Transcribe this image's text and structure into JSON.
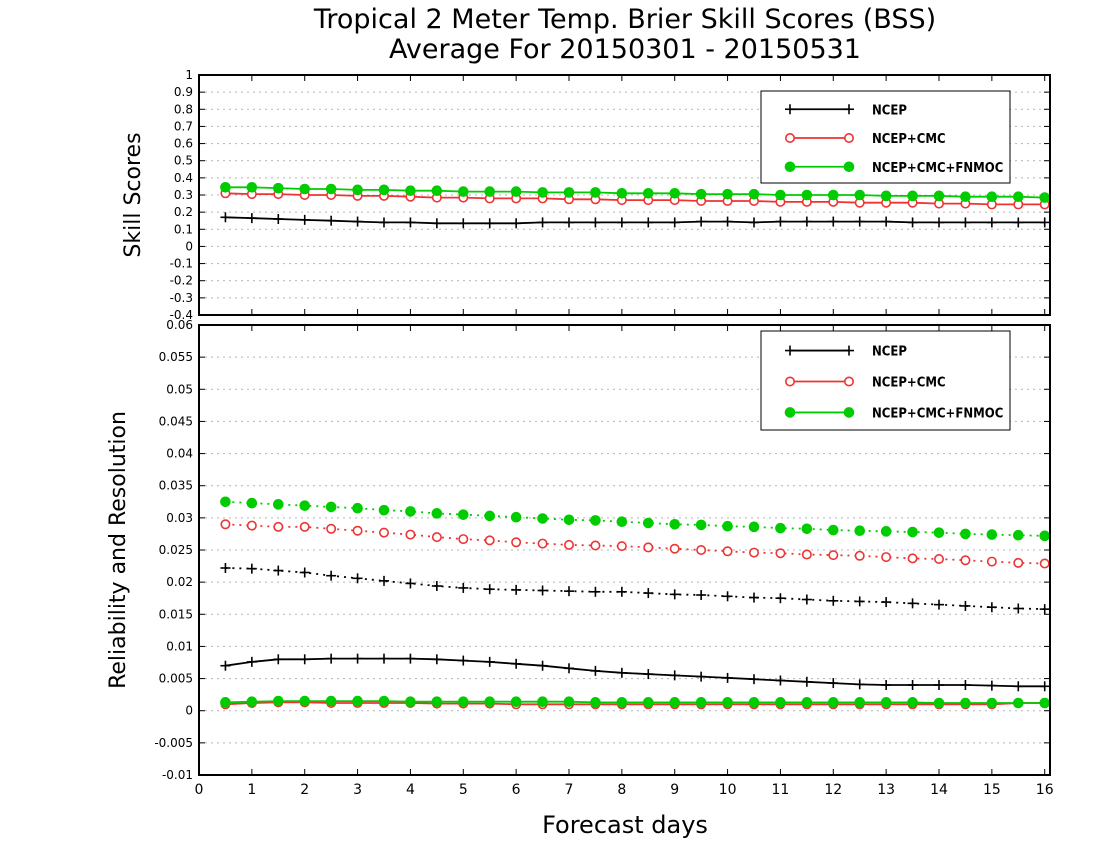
{
  "figure": {
    "title_line1": "Tropical 2 Meter Temp. Brier Skill Scores (BSS)",
    "title_line2": "Average For 20150301 - 20150531",
    "xlabel": "Forecast days"
  },
  "colors": {
    "ncep": "#000000",
    "ncep_cmc": "#ee3333",
    "ncep_cmc_fnmoc": "#00cc00",
    "grid": "#b4b4b4"
  },
  "chart_data": [
    {
      "type": "line",
      "ylabel": "Skill Scores",
      "xlim": [
        0,
        16.1
      ],
      "ylim": [
        -0.4,
        1.0
      ],
      "xticks": [
        0,
        1,
        2,
        3,
        4,
        5,
        6,
        7,
        8,
        9,
        10,
        11,
        12,
        13,
        14,
        15,
        16
      ],
      "yticks": [
        -0.4,
        -0.3,
        -0.2,
        -0.1,
        0,
        0.1,
        0.2,
        0.3,
        0.4,
        0.5,
        0.6,
        0.7,
        0.8,
        0.9,
        1
      ],
      "ytick_labels": [
        "-0.4",
        "-0.3",
        "-0.2",
        "-0.1",
        "0",
        "0.1",
        "0.2",
        "0.3",
        "0.4",
        "0.5",
        "0.6",
        "0.7",
        "0.8",
        "0.9",
        "1"
      ],
      "grid": true,
      "legend": "top-right",
      "x": [
        0.5,
        1,
        1.5,
        2,
        2.5,
        3,
        3.5,
        4,
        4.5,
        5,
        5.5,
        6,
        6.5,
        7,
        7.5,
        8,
        8.5,
        9,
        9.5,
        10,
        10.5,
        11,
        11.5,
        12,
        12.5,
        13,
        13.5,
        14,
        14.5,
        15,
        15.5,
        16
      ],
      "series": [
        {
          "name": "NCEP",
          "color_key": "ncep",
          "marker": "plus",
          "style": "solid",
          "values": [
            0.17,
            0.165,
            0.16,
            0.155,
            0.15,
            0.145,
            0.14,
            0.14,
            0.135,
            0.135,
            0.135,
            0.135,
            0.14,
            0.14,
            0.14,
            0.14,
            0.14,
            0.14,
            0.145,
            0.145,
            0.14,
            0.145,
            0.145,
            0.145,
            0.145,
            0.145,
            0.14,
            0.14,
            0.14,
            0.14,
            0.14,
            0.14
          ]
        },
        {
          "name": "NCEP+CMC",
          "color_key": "ncep_cmc",
          "marker": "open-circle",
          "style": "solid",
          "values": [
            0.31,
            0.305,
            0.305,
            0.3,
            0.3,
            0.295,
            0.295,
            0.29,
            0.285,
            0.285,
            0.28,
            0.28,
            0.28,
            0.275,
            0.275,
            0.27,
            0.27,
            0.27,
            0.265,
            0.265,
            0.265,
            0.26,
            0.26,
            0.26,
            0.255,
            0.255,
            0.255,
            0.25,
            0.25,
            0.245,
            0.245,
            0.245
          ]
        },
        {
          "name": "NCEP+CMC+FNMOC",
          "color_key": "ncep_cmc_fnmoc",
          "marker": "filled-circle",
          "style": "solid",
          "values": [
            0.345,
            0.345,
            0.34,
            0.335,
            0.335,
            0.33,
            0.33,
            0.325,
            0.325,
            0.32,
            0.32,
            0.32,
            0.315,
            0.315,
            0.315,
            0.31,
            0.31,
            0.31,
            0.305,
            0.305,
            0.305,
            0.3,
            0.3,
            0.3,
            0.3,
            0.295,
            0.295,
            0.295,
            0.29,
            0.29,
            0.29,
            0.285
          ]
        }
      ]
    },
    {
      "type": "line",
      "ylabel": "Reliability and Resolution",
      "xlim": [
        0,
        16.1
      ],
      "ylim": [
        -0.01,
        0.06
      ],
      "xticks": [
        0,
        1,
        2,
        3,
        4,
        5,
        6,
        7,
        8,
        9,
        10,
        11,
        12,
        13,
        14,
        15,
        16
      ],
      "yticks": [
        -0.01,
        -0.005,
        0,
        0.005,
        0.01,
        0.015,
        0.02,
        0.025,
        0.03,
        0.035,
        0.04,
        0.045,
        0.05,
        0.055,
        0.06
      ],
      "ytick_labels": [
        "-0.01",
        "-0.005",
        "0",
        "0.005",
        "0.01",
        "0.015",
        "0.02",
        "0.025",
        "0.03",
        "0.035",
        "0.04",
        "0.045",
        "0.05",
        "0.055",
        "0.06"
      ],
      "grid": true,
      "legend": "top-right",
      "x": [
        0.5,
        1,
        1.5,
        2,
        2.5,
        3,
        3.5,
        4,
        4.5,
        5,
        5.5,
        6,
        6.5,
        7,
        7.5,
        8,
        8.5,
        9,
        9.5,
        10,
        10.5,
        11,
        11.5,
        12,
        12.5,
        13,
        13.5,
        14,
        14.5,
        15,
        15.5,
        16
      ],
      "series": [
        {
          "name": "NCEP",
          "color_key": "ncep",
          "marker": "plus",
          "style": "dotted",
          "values": [
            0.0222,
            0.0221,
            0.0218,
            0.0215,
            0.021,
            0.0206,
            0.0202,
            0.0198,
            0.0194,
            0.0191,
            0.0189,
            0.0188,
            0.0187,
            0.0186,
            0.0185,
            0.0185,
            0.0183,
            0.0181,
            0.018,
            0.0178,
            0.0176,
            0.0175,
            0.0173,
            0.0171,
            0.017,
            0.0169,
            0.0167,
            0.0165,
            0.0163,
            0.0161,
            0.0159,
            0.0158
          ]
        },
        {
          "name": "NCEP+CMC",
          "color_key": "ncep_cmc",
          "marker": "open-circle",
          "style": "dotted",
          "values": [
            0.029,
            0.0288,
            0.0286,
            0.0286,
            0.0283,
            0.028,
            0.0277,
            0.0274,
            0.027,
            0.0267,
            0.0265,
            0.0262,
            0.026,
            0.0258,
            0.0257,
            0.0256,
            0.0254,
            0.0252,
            0.025,
            0.0248,
            0.0246,
            0.0245,
            0.0243,
            0.0242,
            0.0241,
            0.0239,
            0.0237,
            0.0236,
            0.0234,
            0.0232,
            0.023,
            0.0229
          ]
        },
        {
          "name": "NCEP+CMC+FNMOC",
          "color_key": "ncep_cmc_fnmoc",
          "marker": "filled-circle",
          "style": "dotted",
          "values": [
            0.0325,
            0.0323,
            0.0321,
            0.0319,
            0.0317,
            0.0315,
            0.0312,
            0.031,
            0.0307,
            0.0305,
            0.0303,
            0.0301,
            0.0299,
            0.0297,
            0.0296,
            0.0294,
            0.0292,
            0.029,
            0.0289,
            0.0287,
            0.0286,
            0.0284,
            0.0283,
            0.0281,
            0.028,
            0.0279,
            0.0278,
            0.0277,
            0.0275,
            0.0274,
            0.0273,
            0.0272
          ]
        },
        {
          "name": "NCEP",
          "color_key": "ncep",
          "marker": "plus",
          "style": "solid",
          "values": [
            0.007,
            0.0076,
            0.008,
            0.008,
            0.0081,
            0.0081,
            0.0081,
            0.0081,
            0.008,
            0.0078,
            0.0076,
            0.0073,
            0.007,
            0.0066,
            0.0062,
            0.0059,
            0.0057,
            0.0055,
            0.0053,
            0.0051,
            0.0049,
            0.0047,
            0.0045,
            0.0043,
            0.0041,
            0.004,
            0.004,
            0.004,
            0.004,
            0.0039,
            0.0038,
            0.0038
          ]
        },
        {
          "name": "NCEP+CMC",
          "color_key": "ncep_cmc",
          "marker": "open-circle",
          "style": "solid",
          "values": [
            0.001,
            0.0012,
            0.0013,
            0.0013,
            0.0012,
            0.0012,
            0.0012,
            0.0012,
            0.0011,
            0.0011,
            0.0011,
            0.001,
            0.001,
            0.001,
            0.001,
            0.001,
            0.001,
            0.001,
            0.001,
            0.001,
            0.001,
            0.001,
            0.001,
            0.001,
            0.001,
            0.001,
            0.001,
            0.001,
            0.001,
            0.001,
            0.0012,
            0.0012
          ]
        },
        {
          "name": "NCEP+CMC+FNMOC",
          "color_key": "ncep_cmc_fnmoc",
          "marker": "filled-circle",
          "style": "solid",
          "values": [
            0.0013,
            0.0014,
            0.0015,
            0.0015,
            0.0015,
            0.0015,
            0.0015,
            0.0014,
            0.0014,
            0.0014,
            0.0014,
            0.0014,
            0.0014,
            0.0014,
            0.0013,
            0.0013,
            0.0013,
            0.0013,
            0.0013,
            0.0013,
            0.0013,
            0.0013,
            0.0013,
            0.0013,
            0.0013,
            0.0013,
            0.0013,
            0.0012,
            0.0012,
            0.0012,
            0.0012,
            0.0012
          ]
        }
      ],
      "legend_entries": [
        {
          "name": "NCEP",
          "color_key": "ncep",
          "marker": "plus"
        },
        {
          "name": "NCEP+CMC",
          "color_key": "ncep_cmc",
          "marker": "open-circle"
        },
        {
          "name": "NCEP+CMC+FNMOC",
          "color_key": "ncep_cmc_fnmoc",
          "marker": "filled-circle"
        }
      ]
    }
  ]
}
